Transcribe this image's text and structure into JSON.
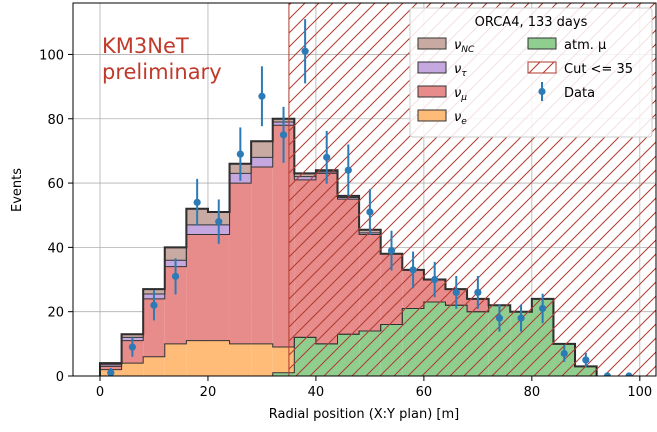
{
  "chart_data": {
    "type": "bar",
    "xlabel": "Radial position (X:Y plan) [m]",
    "ylabel": "Events",
    "xlim": [
      -5,
      103
    ],
    "ylim": [
      0,
      116
    ],
    "xticks": [
      0,
      20,
      40,
      60,
      80,
      100
    ],
    "yticks": [
      0,
      20,
      40,
      60,
      80,
      100
    ],
    "grid": true,
    "bin_width": 4,
    "bin_left_edges": [
      0,
      4,
      8,
      12,
      16,
      20,
      24,
      28,
      32,
      36,
      40,
      44,
      48,
      52,
      56,
      60,
      64,
      68,
      72,
      76,
      80,
      84,
      88
    ],
    "series": [
      {
        "name": "atm. μ",
        "color": "#8fce8f",
        "values": [
          0,
          0,
          0,
          0,
          0,
          0,
          0,
          0,
          1,
          12,
          10,
          13,
          14,
          16,
          21,
          23,
          22,
          20,
          22,
          20,
          24,
          10,
          3
        ]
      },
      {
        "name": "ν_e",
        "color": "#ffbb78",
        "values": [
          2,
          4,
          6,
          10,
          11,
          11,
          10,
          10,
          8,
          0,
          0,
          0,
          0,
          0,
          0,
          0,
          0,
          0,
          0,
          0,
          0,
          0,
          0
        ]
      },
      {
        "name": "ν_μ",
        "color": "#e88b8b",
        "values": [
          1,
          7,
          18,
          24,
          33,
          33,
          50,
          55,
          69,
          49,
          53,
          42,
          30,
          22,
          12,
          7,
          5,
          4,
          0,
          0,
          0,
          0,
          0
        ]
      },
      {
        "name": "ν_τ",
        "color": "#c5a8e0",
        "values": [
          0.5,
          1,
          1.5,
          2,
          3,
          3,
          3,
          3,
          1,
          1,
          0.5,
          0.5,
          0.5,
          0,
          0,
          0,
          0,
          0,
          0,
          0,
          0,
          0,
          0
        ]
      },
      {
        "name": "ν_NC",
        "color": "#c9aaa2",
        "values": [
          0.5,
          1,
          1.5,
          4,
          5,
          4,
          3,
          5,
          1,
          1,
          0.5,
          0.5,
          1,
          0,
          0,
          0,
          0,
          0,
          0,
          0,
          0,
          0,
          0
        ]
      }
    ],
    "data": {
      "name": "Data",
      "color": "#2c7bb6",
      "points": [
        {
          "x": 2,
          "y": 1,
          "err": 1.5
        },
        {
          "x": 6,
          "y": 9,
          "err": 3
        },
        {
          "x": 10,
          "y": 22,
          "err": 4.7
        },
        {
          "x": 14,
          "y": 31,
          "err": 5.6
        },
        {
          "x": 18,
          "y": 54,
          "err": 7.3
        },
        {
          "x": 22,
          "y": 48,
          "err": 6.9
        },
        {
          "x": 26,
          "y": 69,
          "err": 8.3
        },
        {
          "x": 30,
          "y": 87,
          "err": 9.3
        },
        {
          "x": 34,
          "y": 75,
          "err": 8.7
        },
        {
          "x": 38,
          "y": 101,
          "err": 10
        },
        {
          "x": 42,
          "y": 68,
          "err": 8.2
        },
        {
          "x": 46,
          "y": 64,
          "err": 8
        },
        {
          "x": 50,
          "y": 51,
          "err": 7.1
        },
        {
          "x": 54,
          "y": 39,
          "err": 6.2
        },
        {
          "x": 58,
          "y": 33,
          "err": 5.7
        },
        {
          "x": 62,
          "y": 30,
          "err": 5.5
        },
        {
          "x": 66,
          "y": 26,
          "err": 5.1
        },
        {
          "x": 70,
          "y": 26,
          "err": 5.1
        },
        {
          "x": 74,
          "y": 18,
          "err": 4.2
        },
        {
          "x": 78,
          "y": 18,
          "err": 4.2
        },
        {
          "x": 82,
          "y": 21,
          "err": 4.6
        },
        {
          "x": 86,
          "y": 7,
          "err": 2.6
        },
        {
          "x": 90,
          "y": 5,
          "err": 2.2
        },
        {
          "x": 94,
          "y": 0,
          "err": 0
        },
        {
          "x": 98,
          "y": 0,
          "err": 0
        }
      ]
    },
    "cut": {
      "name": "Cut <= 35",
      "x_from": 35,
      "color": "#b03a2e"
    },
    "annotation": {
      "line1": "KM3NeT",
      "line2": "preliminary",
      "color": "#c0392b"
    },
    "legend": {
      "position": "top-right",
      "title": "ORCA4, 133 days",
      "items": [
        {
          "label": "ν",
          "sub": "NC",
          "key": "nu_nc",
          "color": "#c9aaa2",
          "kind": "patch"
        },
        {
          "label": "atm. μ",
          "sub": "",
          "key": "atm_mu",
          "color": "#8fce8f",
          "kind": "patch"
        },
        {
          "label": "ν",
          "sub": "τ",
          "key": "nu_tau",
          "color": "#c5a8e0",
          "kind": "patch"
        },
        {
          "label": "Cut <= 35",
          "sub": "",
          "key": "cut",
          "color": "#b03a2e",
          "kind": "hatch"
        },
        {
          "label": "ν",
          "sub": "μ",
          "key": "nu_mu",
          "color": "#e88b8b",
          "kind": "patch"
        },
        {
          "label": "Data",
          "sub": "",
          "key": "data",
          "color": "#2c7bb6",
          "kind": "point"
        },
        {
          "label": "ν",
          "sub": "e",
          "key": "nu_e",
          "color": "#ffbb78",
          "kind": "patch"
        }
      ]
    }
  }
}
